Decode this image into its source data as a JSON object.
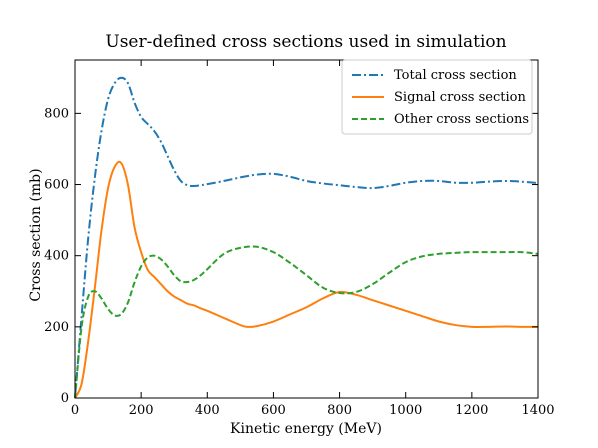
{
  "chart_data": {
    "type": "line",
    "title": "User-defined cross sections used in simulation",
    "xlabel": "Kinetic energy (MeV)",
    "ylabel": "Cross section (mb)",
    "xlim": [
      0,
      1400
    ],
    "ylim": [
      0,
      950
    ],
    "xticks": [
      0,
      200,
      400,
      600,
      800,
      1000,
      1200,
      1400
    ],
    "yticks": [
      0,
      200,
      400,
      600,
      800
    ],
    "legend_position": "top-right",
    "grid": false,
    "series": [
      {
        "name": "Total cross section",
        "color": "#1f77b4",
        "style": "dashdot",
        "x": [
          0,
          20,
          40,
          60,
          80,
          100,
          120,
          140,
          160,
          180,
          200,
          220,
          240,
          260,
          280,
          300,
          320,
          340,
          360,
          380,
          400,
          450,
          500,
          550,
          600,
          650,
          700,
          750,
          800,
          850,
          900,
          950,
          1000,
          1050,
          1100,
          1150,
          1200,
          1250,
          1300,
          1350,
          1400
        ],
        "y": [
          0,
          230,
          450,
          620,
          750,
          840,
          885,
          900,
          885,
          830,
          790,
          770,
          750,
          720,
          680,
          640,
          610,
          598,
          596,
          598,
          601,
          610,
          620,
          628,
          630,
          622,
          610,
          603,
          598,
          593,
          590,
          596,
          605,
          610,
          610,
          605,
          605,
          608,
          610,
          608,
          604
        ]
      },
      {
        "name": "Signal cross section",
        "color": "#ff7f0e",
        "style": "solid",
        "x": [
          0,
          20,
          40,
          60,
          80,
          100,
          120,
          140,
          160,
          180,
          200,
          220,
          240,
          260,
          280,
          300,
          320,
          340,
          360,
          380,
          400,
          450,
          500,
          520,
          550,
          600,
          650,
          700,
          750,
          800,
          850,
          900,
          950,
          1000,
          1050,
          1100,
          1150,
          1200,
          1250,
          1300,
          1350,
          1400
        ],
        "y": [
          0,
          40,
          160,
          310,
          470,
          590,
          650,
          660,
          600,
          480,
          410,
          360,
          340,
          320,
          300,
          285,
          275,
          265,
          260,
          252,
          245,
          225,
          205,
          200,
          202,
          215,
          235,
          255,
          280,
          298,
          290,
          275,
          260,
          245,
          230,
          215,
          205,
          200,
          200,
          201,
          200,
          200
        ]
      },
      {
        "name": "Other cross sections",
        "color": "#2ca02c",
        "style": "dashed",
        "x": [
          0,
          20,
          40,
          60,
          80,
          100,
          120,
          140,
          160,
          180,
          200,
          220,
          240,
          260,
          280,
          300,
          320,
          340,
          360,
          380,
          400,
          450,
          500,
          550,
          600,
          650,
          700,
          750,
          800,
          850,
          900,
          950,
          1000,
          1050,
          1100,
          1150,
          1200,
          1250,
          1300,
          1350,
          1400
        ],
        "y": [
          0,
          200,
          285,
          300,
          280,
          250,
          232,
          236,
          268,
          325,
          370,
          395,
          400,
          390,
          370,
          345,
          328,
          326,
          332,
          345,
          362,
          405,
          422,
          425,
          410,
          380,
          345,
          310,
          295,
          298,
          320,
          352,
          382,
          398,
          405,
          408,
          410,
          410,
          410,
          410,
          405
        ]
      }
    ]
  }
}
